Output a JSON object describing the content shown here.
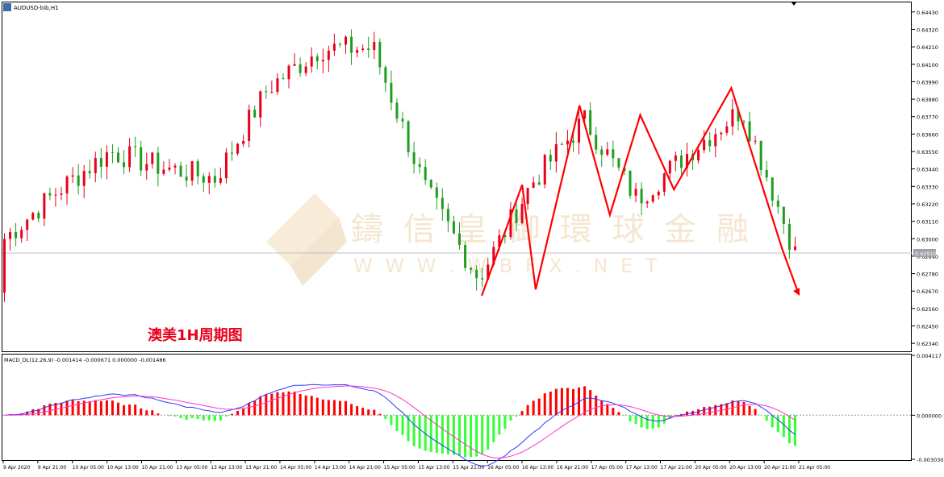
{
  "window": {
    "symbol_label": "AUDUSD-bib,H1",
    "icon": "chart-window-icon"
  },
  "colors": {
    "bull": "#e8001c",
    "bear": "#1e9e1e",
    "hist_pos": "#ff0000",
    "hist_neg": "#33ff33",
    "macd_line": "#2b3bff",
    "signal_line": "#ff33cc",
    "trend_arrow": "#ff0000",
    "price_line": "#c0c0c0",
    "price_tag_bg": "#a0a0a8",
    "caption": "#e8001c",
    "watermark": "#f0d9b5"
  },
  "caption": {
    "text": "澳美1H周期图"
  },
  "watermark": {
    "cn": "鑄 信 皇 御 環 球 金 融",
    "en": "W W W . W B F X . N E T"
  },
  "price_axis": {
    "ticks": [
      "0.64430",
      "0.64320",
      "0.64210",
      "0.64100",
      "0.63990",
      "0.63880",
      "0.63770",
      "0.63660",
      "0.63550",
      "0.63440",
      "0.63330",
      "0.63220",
      "0.63110",
      "0.63000",
      "0.62890",
      "0.62780",
      "0.62670",
      "0.62560",
      "0.62450",
      "0.62340"
    ],
    "current_price": "0.62910"
  },
  "macd": {
    "header": "MACD_DL(12,26,9) -0.001414 -0.000671 0.000000 -0.001486",
    "axis_ticks": [
      "0.004117",
      "0.000000",
      "-0.003030"
    ]
  },
  "time_axis": {
    "labels": [
      "9 Apr 2020",
      "9 Apr 21:00",
      "10 Apr 05:00",
      "10 Apr 13:00",
      "10 Apr 21:00",
      "13 Apr 05:00",
      "13 Apr 13:00",
      "13 Apr 21:00",
      "14 Apr 05:00",
      "14 Apr 13:00",
      "14 Apr 21:00",
      "15 Apr 05:00",
      "15 Apr 13:00",
      "15 Apr 21:00",
      "16 Apr 05:00",
      "16 Apr 13:00",
      "16 Apr 21:00",
      "17 Apr 05:00",
      "17 Apr 13:00",
      "17 Apr 21:00",
      "20 Apr 05:00",
      "20 Apr 13:00",
      "20 Apr 21:00",
      "21 Apr 05:00"
    ]
  },
  "chart_data": {
    "type": "candlestick",
    "symbol": "AUDUSD",
    "timeframe": "H1",
    "ylim": [
      0.6229,
      0.6449
    ],
    "macd_ylim": [
      -0.00303,
      0.004117
    ],
    "candle_count": 140,
    "candles_sample": [
      {
        "o": 0.6266,
        "h": 0.6305,
        "l": 0.6248,
        "c": 0.63
      },
      {
        "o": 0.63,
        "h": 0.6342,
        "l": 0.629,
        "c": 0.633
      },
      {
        "o": 0.6335,
        "h": 0.6368,
        "l": 0.6325,
        "c": 0.6355
      },
      {
        "o": 0.6345,
        "h": 0.636,
        "l": 0.633,
        "c": 0.6345
      },
      {
        "o": 0.634,
        "h": 0.635,
        "l": 0.633,
        "c": 0.6338
      },
      {
        "o": 0.6355,
        "h": 0.64,
        "l": 0.6345,
        "c": 0.6395
      },
      {
        "o": 0.64,
        "h": 0.6432,
        "l": 0.639,
        "c": 0.642
      },
      {
        "o": 0.6425,
        "h": 0.6445,
        "l": 0.6395,
        "c": 0.642
      },
      {
        "o": 0.6395,
        "h": 0.6405,
        "l": 0.6325,
        "c": 0.633
      },
      {
        "o": 0.63,
        "h": 0.6315,
        "l": 0.6265,
        "c": 0.6275
      },
      {
        "o": 0.629,
        "h": 0.6345,
        "l": 0.6283,
        "c": 0.6335
      },
      {
        "o": 0.635,
        "h": 0.6384,
        "l": 0.6345,
        "c": 0.6375
      },
      {
        "o": 0.6345,
        "h": 0.6378,
        "l": 0.631,
        "c": 0.6325
      },
      {
        "o": 0.635,
        "h": 0.6378,
        "l": 0.634,
        "c": 0.6355
      },
      {
        "o": 0.636,
        "h": 0.639,
        "l": 0.6345,
        "c": 0.6382
      },
      {
        "o": 0.6345,
        "h": 0.635,
        "l": 0.6285,
        "c": 0.6291
      }
    ],
    "trend_path": [
      {
        "bar": 0,
        "price": 0.6264
      },
      {
        "bar": 12,
        "price": 0.6334
      },
      {
        "bar": 16,
        "price": 0.6268
      },
      {
        "bar": 29,
        "price": 0.6384
      },
      {
        "bar": 38,
        "price": 0.6315
      },
      {
        "bar": 47,
        "price": 0.6378
      },
      {
        "bar": 57,
        "price": 0.6331
      },
      {
        "bar": 74,
        "price": 0.6395
      },
      {
        "bar": 89,
        "price": 0.6294
      },
      {
        "bar": 94,
        "price": 0.6265
      }
    ]
  }
}
